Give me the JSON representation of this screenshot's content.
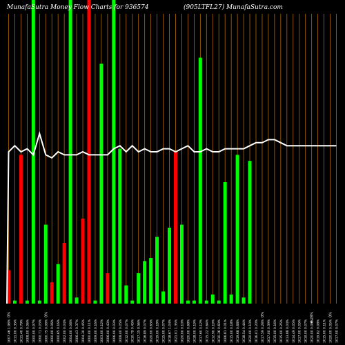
{
  "chart_data": {
    "type": "bar",
    "title_left": "MunafaSutra  Money Flow  Charts for 936574",
    "title_right": "(905LTFL27) MunafaSutra.com",
    "ylim": [
      0,
      100
    ],
    "grid": "vertical",
    "colors": {
      "background": "#000000",
      "up": "#00ff00",
      "down": "#ff0000",
      "grid": "#b36b00",
      "line": "#ffffff",
      "text": "#ffffff"
    },
    "categories": [
      "1007.46 1.98%",
      "1011.00 0.35%",
      "1011.40 0.79%",
      "1008.00 0.06%",
      "1000.00 0.97%",
      "1000.71 0.03%",
      "1000.75 0.08%",
      "1000.00 0.06%",
      "1000.65 0.16%",
      "1002.00 0.04%",
      "1004.00 0.06%",
      "1006.43 0.37%",
      "1004.30 0.45%",
      "1000.00 0.11%",
      "1009.00 0.16%",
      "1003.00 0.12%",
      "1006.00 0.43%",
      "1006.00 0.03%",
      "1008.00 0.05%",
      "1012.00 0.07%",
      "1010.79 0.45%",
      "1017.15 0.56%",
      "1016.89 0.07%",
      "1020.00 0.65%",
      "1019.00 0.18%",
      "1015.00 0.07%",
      "1018.67 1.04%",
      "1021.01 1.35%",
      "1020.00 0.10%",
      "1020.00 0.68%",
      "1018.00 0.19%",
      "1017.60 0.12%",
      "1015.22 0.64%",
      "1012.90 0.19%",
      "1010.36 0.60%",
      "1006.81 0.01%",
      "1015.00 0.18%",
      "1019.68 0.68%",
      "1018.54 0.44%",
      "1020.00 0.10%",
      "1016.01 0.20%",
      "1017.59 0.28%",
      "1017.00 0.39%",
      "1015.00 0.16%",
      "1015.00 0.25%",
      "1013.88 0.04%",
      "1014.49 0.05%",
      "1017.00 0.05%",
      "1019.00 0.07%",
      "1020.00 0.08%",
      "1019.82 0.08%",
      "1015.00 0.11%",
      "1020.00 0.05%",
      "1017.00 0.07%"
    ],
    "pct_labels": [
      "0%",
      "",
      "",
      "",
      "",
      "",
      "0%",
      "",
      "",
      "",
      "",
      "",
      "",
      "",
      "",
      "",
      "",
      "",
      "",
      "",
      "",
      "",
      "",
      "",
      "",
      "",
      "",
      "",
      "",
      "",
      "",
      "",
      "",
      "",
      "",
      "",
      "",
      "",
      "",
      "",
      "",
      "0%",
      "",
      "",
      "",
      "",
      "",
      "",
      "",
      "6.28%",
      "",
      "",
      "0%",
      ""
    ],
    "bar_colors": [
      "down",
      "up",
      "down",
      "up",
      "up",
      "up",
      "up",
      "down",
      "up",
      "down",
      "up",
      "up",
      "down",
      "down",
      "up",
      "up",
      "down",
      "up",
      "up",
      "up",
      "up",
      "up",
      "up",
      "up",
      "up",
      "up",
      "up",
      "down",
      "up",
      "up",
      "up",
      "up",
      "up",
      "up",
      "up",
      "up",
      "up",
      "up",
      "up",
      "up",
      "up",
      "down",
      "up",
      "up",
      "up",
      "up",
      "up",
      "up",
      "up",
      "down",
      "up",
      "down",
      "up",
      "up"
    ],
    "values": [
      11,
      1,
      49,
      1,
      100,
      1,
      26,
      7,
      13,
      20,
      100,
      2,
      28,
      100,
      1,
      79,
      10,
      100,
      51,
      6,
      1,
      10,
      14,
      15,
      22,
      4,
      25,
      50,
      26,
      1,
      1,
      81,
      1,
      3,
      1,
      40,
      3,
      49,
      2,
      47,
      0,
      0,
      0,
      0,
      0,
      0,
      0,
      0,
      0,
      0,
      0,
      0,
      0,
      0
    ],
    "line_values": [
      50,
      52,
      50,
      51,
      49,
      56,
      49,
      48,
      50,
      49,
      49,
      49,
      50,
      49,
      49,
      49,
      49,
      51,
      52,
      50,
      52,
      50,
      51,
      50,
      50,
      51,
      51,
      50,
      51,
      52,
      50,
      50,
      51,
      50,
      50,
      51,
      51,
      51,
      51,
      52,
      53,
      53,
      54,
      54,
      53,
      52,
      52,
      52,
      52,
      52,
      52,
      52,
      52,
      52
    ]
  }
}
